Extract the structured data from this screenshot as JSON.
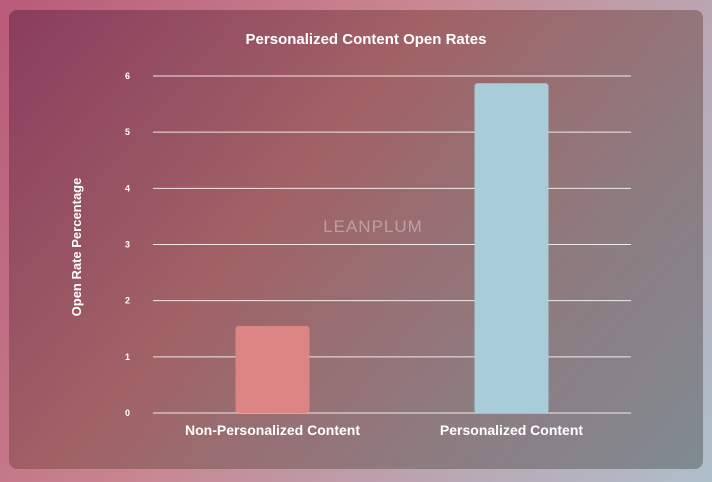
{
  "watermark": "LEANPLUM",
  "chart_data": {
    "type": "bar",
    "title": "Personalized Content Open Rates",
    "xlabel": "",
    "ylabel": "Open Rate Percentage",
    "categories": [
      "Non-Personalized Content",
      "Personalized Content"
    ],
    "values": [
      1.55,
      5.87
    ],
    "ylim": [
      0,
      6
    ],
    "yticks": [
      "0",
      "1",
      "2",
      "3",
      "4",
      "5",
      "6"
    ],
    "grid": true,
    "legend": "none",
    "colors": [
      "#db8584",
      "#a9cdd8"
    ]
  }
}
